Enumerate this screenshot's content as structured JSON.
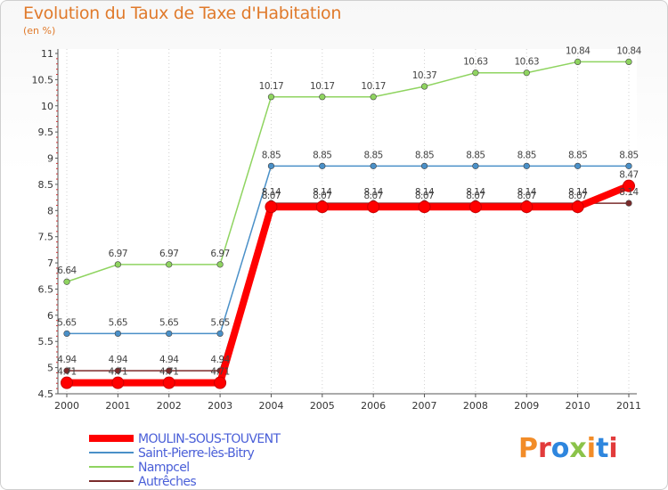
{
  "title": "Evolution du Taux de Taxe d'Habitation",
  "subtitle": "(en %)",
  "logo": {
    "text": "Proxiti",
    "colors": [
      "#f28c28",
      "#e23b3b",
      "#2e86de",
      "#8bc34a",
      "#f28c28",
      "#2e86de",
      "#e23b3b"
    ]
  },
  "chart_data": {
    "type": "line",
    "title": "Evolution du Taux de Taxe d'Habitation",
    "ylabel": "(en %)",
    "xlabel": "",
    "x": [
      "2000",
      "2001",
      "2002",
      "2003",
      "2004",
      "2005",
      "2006",
      "2007",
      "2008",
      "2009",
      "2010",
      "2011"
    ],
    "ylim": [
      4.5,
      11
    ],
    "yticks": [
      "4.5",
      "5",
      "5.5",
      "6",
      "6.5",
      "7",
      "7.5",
      "8",
      "8.5",
      "9",
      "9.5",
      "10",
      "10.5",
      "11"
    ],
    "grid": "dotted vertical",
    "legend": "bottom-left",
    "series": [
      {
        "name": "MOULIN-SOUS-TOUVENT",
        "color": "#ff0000",
        "values": [
          4.71,
          4.71,
          4.71,
          4.71,
          8.07,
          8.07,
          8.07,
          8.07,
          8.07,
          8.07,
          8.07,
          8.47
        ],
        "labels": [
          "4.71",
          "4.71",
          "4.71",
          "4.71",
          "8.07",
          "8.07",
          "8.07",
          "8.07",
          "8.07",
          "8.07",
          "8.07",
          "8.47"
        ]
      },
      {
        "name": "Saint-Pierre-lès-Bitry",
        "color": "#4a90c8",
        "values": [
          5.65,
          5.65,
          5.65,
          5.65,
          8.85,
          8.85,
          8.85,
          8.85,
          8.85,
          8.85,
          8.85,
          8.85
        ],
        "labels": [
          "5.65",
          "5.65",
          "5.65",
          "5.65",
          "8.85",
          "8.85",
          "8.85",
          "8.85",
          "8.85",
          "8.85",
          "8.85",
          "8.85"
        ]
      },
      {
        "name": "Nampcel",
        "color": "#8fd460",
        "values": [
          6.64,
          6.97,
          6.97,
          6.97,
          10.17,
          10.17,
          10.17,
          10.37,
          10.63,
          10.63,
          10.84,
          10.84
        ],
        "labels": [
          "6.64",
          "6.97",
          "6.97",
          "6.97",
          "10.17",
          "10.17",
          "10.17",
          "10.37",
          "10.63",
          "10.63",
          "10.84",
          "10.84"
        ]
      },
      {
        "name": "Autrêches",
        "color": "#7a2b2b",
        "values": [
          4.94,
          4.94,
          4.94,
          4.94,
          8.14,
          8.14,
          8.14,
          8.14,
          8.14,
          8.14,
          8.14,
          8.14
        ],
        "labels": [
          "4.94",
          "4.94",
          "4.94",
          "4.94",
          "8.14",
          "8.14",
          "8.14",
          "8.14",
          "8.14",
          "8.14",
          "8.14",
          "8.14"
        ]
      }
    ]
  }
}
